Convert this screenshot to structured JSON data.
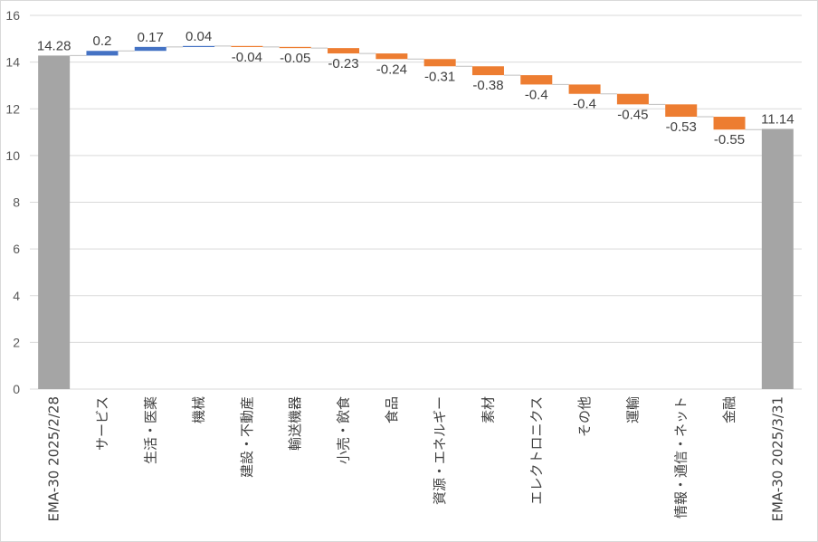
{
  "chart_data": {
    "type": "waterfall",
    "categories": [
      "EMA-30 2025/2/28",
      "サービス",
      "生活・医薬",
      "機械",
      "建設・不動産",
      "輸送機器",
      "小売・飲食",
      "食品",
      "資源・エネルギー",
      "素材",
      "エレクトロニクス",
      "その他",
      "運輸",
      "情報・通信・ネット",
      "金融",
      "EMA-30 2025/3/31"
    ],
    "values": [
      14.28,
      0.2,
      0.17,
      0.04,
      -0.04,
      -0.05,
      -0.23,
      -0.24,
      -0.31,
      -0.38,
      -0.4,
      -0.4,
      -0.45,
      -0.53,
      -0.55,
      11.14
    ],
    "value_labels": [
      "14.28",
      "0.2",
      "0.17",
      "0.04",
      "-0.04",
      "-0.05",
      "-0.23",
      "-0.24",
      "-0.31",
      "-0.38",
      "-0.4",
      "-0.4",
      "-0.45",
      "-0.53",
      "-0.55",
      "11.14"
    ],
    "kinds": [
      "total",
      "delta",
      "delta",
      "delta",
      "delta",
      "delta",
      "delta",
      "delta",
      "delta",
      "delta",
      "delta",
      "delta",
      "delta",
      "delta",
      "delta",
      "total"
    ],
    "ylim": [
      0,
      16
    ],
    "yticks": [
      "0",
      "2",
      "4",
      "6",
      "8",
      "10",
      "12",
      "14",
      "16"
    ],
    "grid": true,
    "colors": {
      "total": "#a5a5a5",
      "increase": "#4472c4",
      "decrease": "#ed7d31",
      "grid": "#d9d9d9",
      "connector": "#bfbfbf"
    }
  }
}
